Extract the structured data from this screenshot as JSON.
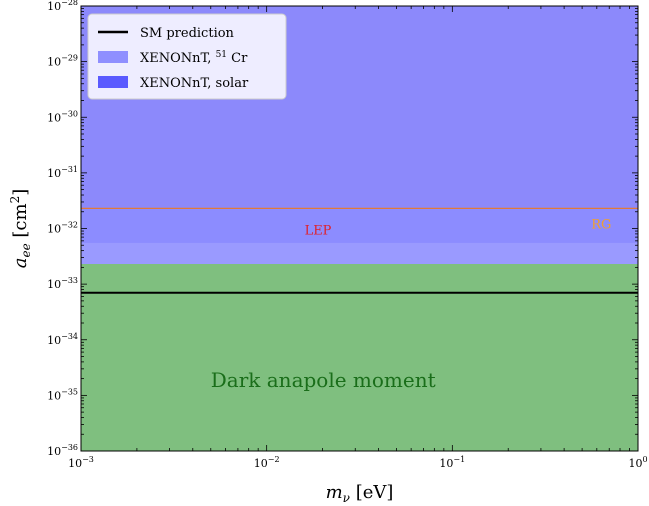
{
  "chart_data": {
    "type": "area",
    "xlabel": "m_ν [eV]",
    "ylabel": "a_ee [cm^2]",
    "xscale": "log",
    "yscale": "log",
    "xlim": [
      0.001,
      1
    ],
    "ylim": [
      1e-36,
      1e-28
    ],
    "x_ticks": [
      {
        "value": 0.001,
        "base": "10",
        "exp": "−3"
      },
      {
        "value": 0.01,
        "base": "10",
        "exp": "−2"
      },
      {
        "value": 0.1,
        "base": "10",
        "exp": "−1"
      },
      {
        "value": 1,
        "base": "10",
        "exp": "0"
      }
    ],
    "y_ticks": [
      {
        "value": 1e-28,
        "base": "10",
        "exp": "−28"
      },
      {
        "value": 1e-29,
        "base": "10",
        "exp": "−29"
      },
      {
        "value": 1e-30,
        "base": "10",
        "exp": "−30"
      },
      {
        "value": 1e-31,
        "base": "10",
        "exp": "−31"
      },
      {
        "value": 1e-32,
        "base": "10",
        "exp": "−32"
      },
      {
        "value": 1e-33,
        "base": "10",
        "exp": "−33"
      },
      {
        "value": 1e-34,
        "base": "10",
        "exp": "−34"
      },
      {
        "value": 1e-35,
        "base": "10",
        "exp": "−35"
      },
      {
        "value": 1e-36,
        "base": "10",
        "exp": "−36"
      }
    ],
    "regions": [
      {
        "name": "RG",
        "y_range": [
          2.3e-32,
          1e-28
        ],
        "color": "#e07a3a",
        "opacity": 0.75
      },
      {
        "name": "LEP",
        "y_range": [
          2.3e-32,
          1e-28
        ],
        "color": "#e0204a",
        "opacity": 0.35
      },
      {
        "name": "XENONnT, solar",
        "y_range": [
          5.5e-33,
          1e-28
        ],
        "color": "#4444ff",
        "opacity": 0.75
      },
      {
        "name": "XENONnT, 51 Cr",
        "y_range": [
          2.3e-33,
          1e-28
        ],
        "color": "#8f8fff",
        "opacity": 0.9
      },
      {
        "name": "Dark anapole moment",
        "y_range": [
          1e-36,
          2.3e-33
        ],
        "color": "#7fbf7f",
        "opacity": 1
      }
    ],
    "lines": [
      {
        "name": "SM prediction",
        "y": 7e-34,
        "color": "#000000"
      }
    ],
    "annotations": [
      {
        "text": "LEP",
        "x": 0.016,
        "y": 7.8e-33,
        "color": "#e0202a"
      },
      {
        "text": "RG",
        "x": 0.56,
        "y": 1e-32,
        "color": "#f0a030"
      },
      {
        "text": "Dark anapole moment",
        "x": 0.005,
        "y": 1.4e-35,
        "color": "#1a6e1a"
      }
    ],
    "legend": {
      "position": "top-left",
      "items": [
        {
          "type": "line",
          "color": "#000000",
          "label": "SM prediction",
          "parts": [
            {
              "text": "SM prediction"
            }
          ]
        },
        {
          "type": "patch",
          "color": "#8f8fff",
          "label": "XENONnT, 51 Cr",
          "parts": [
            {
              "text": "XENONnT, "
            },
            {
              "text": "51",
              "sup": true
            },
            {
              "text": " Cr"
            }
          ]
        },
        {
          "type": "patch",
          "color": "#5a5aff",
          "label": "XENONnT, solar",
          "parts": [
            {
              "text": "XENONnT, solar"
            }
          ]
        }
      ]
    },
    "grid": false
  }
}
